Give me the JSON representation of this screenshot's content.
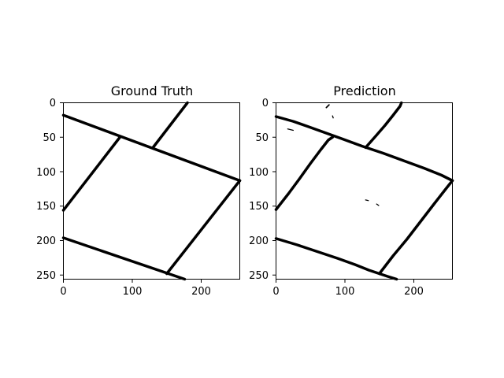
{
  "figure": {
    "background": "#ffffff",
    "foreground": "#000000"
  },
  "panels": [
    {
      "id": "ground-truth",
      "title": "Ground Truth",
      "image_size": [
        256,
        256
      ],
      "x_ticks": [
        "0",
        "100",
        "200"
      ],
      "y_ticks": [
        "0",
        "50",
        "100",
        "150",
        "200",
        "250"
      ]
    },
    {
      "id": "prediction",
      "title": "Prediction",
      "image_size": [
        256,
        256
      ],
      "x_ticks": [
        "0",
        "100",
        "200"
      ],
      "y_ticks": [
        "0",
        "50",
        "100",
        "150",
        "200",
        "250"
      ]
    }
  ]
}
